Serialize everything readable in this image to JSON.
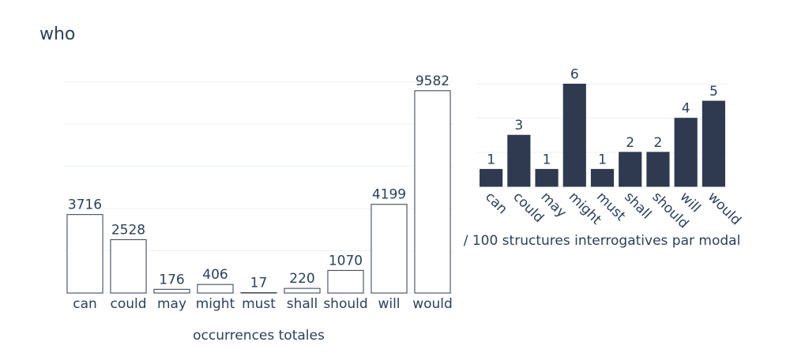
{
  "title": "who",
  "chart_data": [
    {
      "type": "bar",
      "xlabel": "occurrences totales",
      "categories": [
        "can",
        "could",
        "may",
        "might",
        "must",
        "shall",
        "should",
        "will",
        "would"
      ],
      "values": [
        3716,
        2528,
        176,
        406,
        17,
        220,
        1070,
        4199,
        9582
      ],
      "color": "#ffffff",
      "edgecolor": "#2f3a50",
      "ylim": [
        0,
        10100
      ],
      "yticks": [
        0,
        2000,
        4000,
        6000,
        8000,
        10000
      ],
      "grid": true,
      "xtick_rotation": 0
    },
    {
      "type": "bar",
      "xlabel": "/ 100 structures interrogatives par modal",
      "categories": [
        "can",
        "could",
        "may",
        "might",
        "must",
        "shall",
        "should",
        "will",
        "would"
      ],
      "values": [
        1,
        3,
        1,
        6,
        1,
        2,
        2,
        4,
        5
      ],
      "color": "#2f3a50",
      "edgecolor": "#2f3a50",
      "ylim": [
        0,
        6.3
      ],
      "yticks": [
        0,
        2,
        4,
        6
      ],
      "grid": true,
      "xtick_rotation": 45
    }
  ]
}
